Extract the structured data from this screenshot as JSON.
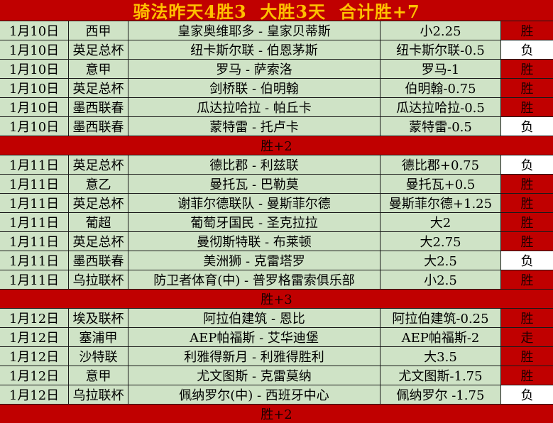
{
  "title": "骑法昨天4胜3  大胜3天  合计胜+7",
  "colors": {
    "red": "#c00000",
    "green": "#cfe3c6",
    "white": "#ffffff",
    "title_text": "#ffc000",
    "body_text": "#000000"
  },
  "result_styles": {
    "胜": "red",
    "负": "white",
    "走": "red"
  },
  "table": {
    "rows": [
      {
        "type": "match",
        "date": "1月10日",
        "league": "西甲",
        "match": "皇家奥维耶多 - 皇家贝蒂斯",
        "handicap": "小2.25",
        "result": "胜"
      },
      {
        "type": "match",
        "date": "1月10日",
        "league": "英足总杯",
        "match": "纽卡斯尔联 - 伯恩茅斯",
        "handicap": "纽卡斯尔联-0.5",
        "result": "负"
      },
      {
        "type": "match",
        "date": "1月10日",
        "league": "意甲",
        "match": "罗马 - 萨索洛",
        "handicap": "罗马-1",
        "result": "胜"
      },
      {
        "type": "match",
        "date": "1月10日",
        "league": "英足总杯",
        "match": "剑桥联 - 伯明翰",
        "handicap": "伯明翰-0.75",
        "result": "胜"
      },
      {
        "type": "match",
        "date": "1月10日",
        "league": "墨西联春",
        "match": "瓜达拉哈拉 - 帕丘卡",
        "handicap": "瓜达拉哈拉-0.5",
        "result": "胜"
      },
      {
        "type": "match",
        "date": "1月10日",
        "league": "墨西联春",
        "match": "蒙特雷 - 托卢卡",
        "handicap": "蒙特雷-0.5",
        "result": "负"
      },
      {
        "type": "summary",
        "label": "胜+2"
      },
      {
        "type": "match",
        "date": "1月11日",
        "league": "英足总杯",
        "match": "德比郡 - 利兹联",
        "handicap": "德比郡+0.75",
        "result": "负"
      },
      {
        "type": "match",
        "date": "1月11日",
        "league": "意乙",
        "match": "曼托瓦 - 巴勒莫",
        "handicap": "曼托瓦+0.5",
        "result": "胜"
      },
      {
        "type": "match",
        "date": "1月11日",
        "league": "英足总杯",
        "match": "谢菲尔德联队 - 曼斯菲尔德",
        "handicap": "曼斯菲尔德+1.25",
        "result": "胜"
      },
      {
        "type": "match",
        "date": "1月11日",
        "league": "葡超",
        "match": "葡萄牙国民 - 圣克拉拉",
        "handicap": "大2",
        "result": "胜"
      },
      {
        "type": "match",
        "date": "1月11日",
        "league": "英足总杯",
        "match": "曼彻斯特联 - 布莱顿",
        "handicap": "大2.75",
        "result": "胜"
      },
      {
        "type": "match",
        "date": "1月11日",
        "league": "墨西联春",
        "match": "美洲狮 - 克雷塔罗",
        "handicap": "大2.5",
        "result": "负"
      },
      {
        "type": "match",
        "date": "1月11日",
        "league": "乌拉联杯",
        "match": "防卫者体育(中) - 普罗格雷索俱乐部",
        "handicap": "小2.5",
        "result": "胜"
      },
      {
        "type": "summary",
        "label": "胜+3"
      },
      {
        "type": "match",
        "date": "1月12日",
        "league": "埃及联杯",
        "match": "阿拉伯建筑 - 恩比",
        "handicap": "阿拉伯建筑-0.25",
        "result": "胜"
      },
      {
        "type": "match",
        "date": "1月12日",
        "league": "塞浦甲",
        "match": "AEP帕福斯 - 艾华迪堡",
        "handicap": "AEP帕福斯-2",
        "result": "走"
      },
      {
        "type": "match",
        "date": "1月12日",
        "league": "沙特联",
        "match": "利雅得新月 - 利雅得胜利",
        "handicap": "大3.5",
        "result": "胜"
      },
      {
        "type": "match",
        "date": "1月12日",
        "league": "意甲",
        "match": "尤文图斯 - 克雷莫纳",
        "handicap": "尤文图斯-1.75",
        "result": "胜"
      },
      {
        "type": "match",
        "date": "1月12日",
        "league": "乌拉联杯",
        "match": "佩纳罗尔(中) - 西班牙中心",
        "handicap": "佩纳罗尔 -1.75",
        "result": "负"
      },
      {
        "type": "summary",
        "label": "胜+2"
      }
    ]
  }
}
